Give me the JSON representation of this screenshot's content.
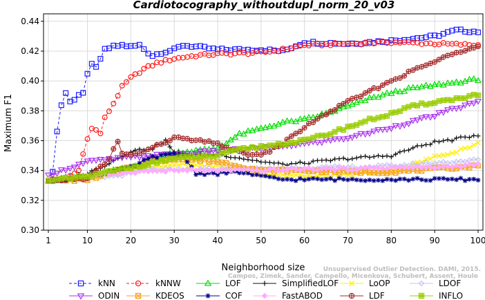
{
  "chart_data": {
    "type": "line",
    "title": "Cardiotocography_withoutdupl_norm_20_v03",
    "xlabel": "Neighborhood size",
    "ylabel": "Maximum F1",
    "xlim": [
      1,
      100
    ],
    "ylim": [
      0.3,
      0.445
    ],
    "xticks": [
      1,
      10,
      20,
      30,
      40,
      50,
      60,
      70,
      80,
      90,
      100
    ],
    "yticks": [
      0.3,
      0.32,
      0.34,
      0.36,
      0.38,
      0.4,
      0.42,
      0.44
    ],
    "xtick_labels": [
      "1",
      "10",
      "20",
      "30",
      "40",
      "50",
      "60",
      "70",
      "80",
      "90",
      "100"
    ],
    "ytick_labels": [
      "0.30",
      "0.32",
      "0.34",
      "0.36",
      "0.38",
      "0.40",
      "0.42",
      "0.44"
    ],
    "grid": true,
    "legend_position": "bottom",
    "watermark": "Campos, Zimek, Sander, Campello, Micenkova, Schubert, Assent, Houle",
    "watermark_line1": "Unsupervised Outlier Detection. DAMI, 2015.",
    "series": [
      {
        "name": "kNN",
        "color": "#1a1aff",
        "marker": "square",
        "dashed": true,
        "knots": [
          [
            1,
            0.333
          ],
          [
            2,
            0.34
          ],
          [
            3,
            0.366
          ],
          [
            4,
            0.384
          ],
          [
            5,
            0.392
          ],
          [
            6,
            0.386
          ],
          [
            7,
            0.388
          ],
          [
            8,
            0.391
          ],
          [
            9,
            0.392
          ],
          [
            10,
            0.404
          ],
          [
            11,
            0.411
          ],
          [
            12,
            0.41
          ],
          [
            13,
            0.414
          ],
          [
            14,
            0.421
          ],
          [
            15,
            0.422
          ],
          [
            16,
            0.423
          ],
          [
            18,
            0.424
          ],
          [
            20,
            0.423
          ],
          [
            22,
            0.424
          ],
          [
            24,
            0.419
          ],
          [
            25,
            0.417
          ],
          [
            27,
            0.419
          ],
          [
            30,
            0.421
          ],
          [
            32,
            0.424
          ],
          [
            35,
            0.423
          ],
          [
            40,
            0.421
          ],
          [
            50,
            0.421
          ],
          [
            55,
            0.42
          ],
          [
            60,
            0.426
          ],
          [
            70,
            0.425
          ],
          [
            80,
            0.427
          ],
          [
            90,
            0.43
          ],
          [
            95,
            0.434
          ],
          [
            100,
            0.433
          ]
        ]
      },
      {
        "name": "kNNW",
        "color": "#ff1a1a",
        "marker": "circle",
        "dashed": true,
        "knots": [
          [
            1,
            0.333
          ],
          [
            5,
            0.334
          ],
          [
            8,
            0.34
          ],
          [
            10,
            0.362
          ],
          [
            11,
            0.368
          ],
          [
            12,
            0.367
          ],
          [
            13,
            0.365
          ],
          [
            14,
            0.375
          ],
          [
            15,
            0.38
          ],
          [
            16,
            0.385
          ],
          [
            18,
            0.396
          ],
          [
            20,
            0.402
          ],
          [
            23,
            0.408
          ],
          [
            26,
            0.412
          ],
          [
            30,
            0.415
          ],
          [
            35,
            0.417
          ],
          [
            40,
            0.418
          ],
          [
            50,
            0.419
          ],
          [
            55,
            0.421
          ],
          [
            60,
            0.424
          ],
          [
            70,
            0.425
          ],
          [
            80,
            0.426
          ],
          [
            90,
            0.425
          ],
          [
            100,
            0.424
          ]
        ]
      },
      {
        "name": "LOF",
        "color": "#00dd00",
        "marker": "triangle",
        "knots": [
          [
            1,
            0.333
          ],
          [
            10,
            0.336
          ],
          [
            20,
            0.342
          ],
          [
            25,
            0.347
          ],
          [
            30,
            0.352
          ],
          [
            35,
            0.353
          ],
          [
            40,
            0.355
          ],
          [
            45,
            0.364
          ],
          [
            50,
            0.368
          ],
          [
            55,
            0.372
          ],
          [
            60,
            0.374
          ],
          [
            65,
            0.378
          ],
          [
            70,
            0.383
          ],
          [
            75,
            0.388
          ],
          [
            80,
            0.392
          ],
          [
            85,
            0.395
          ],
          [
            90,
            0.397
          ],
          [
            95,
            0.399
          ],
          [
            100,
            0.401
          ]
        ]
      },
      {
        "name": "SimplifiedLOF",
        "color": "#111111",
        "marker": "plus",
        "knots": [
          [
            1,
            0.333
          ],
          [
            10,
            0.338
          ],
          [
            15,
            0.345
          ],
          [
            20,
            0.353
          ],
          [
            25,
            0.355
          ],
          [
            28,
            0.36
          ],
          [
            30,
            0.352
          ],
          [
            35,
            0.35
          ],
          [
            40,
            0.351
          ],
          [
            50,
            0.346
          ],
          [
            55,
            0.344
          ],
          [
            60,
            0.345
          ],
          [
            70,
            0.348
          ],
          [
            75,
            0.349
          ],
          [
            80,
            0.35
          ],
          [
            85,
            0.355
          ],
          [
            90,
            0.359
          ],
          [
            95,
            0.361
          ],
          [
            100,
            0.364
          ]
        ]
      },
      {
        "name": "LoOP",
        "color": "#ffee00",
        "marker": "x",
        "knots": [
          [
            1,
            0.334
          ],
          [
            10,
            0.335
          ],
          [
            20,
            0.34
          ],
          [
            30,
            0.344
          ],
          [
            40,
            0.343
          ],
          [
            50,
            0.338
          ],
          [
            60,
            0.336
          ],
          [
            70,
            0.337
          ],
          [
            80,
            0.34
          ],
          [
            85,
            0.344
          ],
          [
            90,
            0.349
          ],
          [
            95,
            0.353
          ],
          [
            100,
            0.358
          ]
        ]
      },
      {
        "name": "LDOF",
        "color": "#c5c5ee",
        "marker": "diamond",
        "knots": [
          [
            1,
            0.333
          ],
          [
            15,
            0.336
          ],
          [
            20,
            0.338
          ],
          [
            25,
            0.341
          ],
          [
            30,
            0.34
          ],
          [
            40,
            0.341
          ],
          [
            50,
            0.341
          ],
          [
            60,
            0.342
          ],
          [
            70,
            0.342
          ],
          [
            80,
            0.343
          ],
          [
            90,
            0.345
          ],
          [
            100,
            0.347
          ]
        ]
      },
      {
        "name": "ODIN",
        "color": "#aa33ee",
        "marker": "triangle-down",
        "knots": [
          [
            1,
            0.337
          ],
          [
            10,
            0.346
          ],
          [
            20,
            0.349
          ],
          [
            30,
            0.351
          ],
          [
            40,
            0.353
          ],
          [
            50,
            0.355
          ],
          [
            60,
            0.358
          ],
          [
            70,
            0.362
          ],
          [
            80,
            0.369
          ],
          [
            90,
            0.377
          ],
          [
            95,
            0.382
          ],
          [
            100,
            0.386
          ]
        ]
      },
      {
        "name": "KDEOS",
        "color": "#f5a623",
        "marker": "boxtimes",
        "knots": [
          [
            1,
            0.333
          ],
          [
            10,
            0.334
          ],
          [
            20,
            0.342
          ],
          [
            25,
            0.346
          ],
          [
            30,
            0.348
          ],
          [
            40,
            0.346
          ],
          [
            50,
            0.34
          ],
          [
            60,
            0.34
          ],
          [
            70,
            0.339
          ],
          [
            80,
            0.339
          ],
          [
            90,
            0.341
          ],
          [
            100,
            0.343
          ]
        ]
      },
      {
        "name": "COF",
        "color": "#000088",
        "marker": "asterisk",
        "knots": [
          [
            1,
            0.333
          ],
          [
            10,
            0.336
          ],
          [
            20,
            0.342
          ],
          [
            25,
            0.349
          ],
          [
            30,
            0.351
          ],
          [
            32,
            0.35
          ],
          [
            35,
            0.338
          ],
          [
            40,
            0.338
          ],
          [
            45,
            0.339
          ],
          [
            50,
            0.336
          ],
          [
            55,
            0.334
          ],
          [
            60,
            0.334
          ],
          [
            70,
            0.334
          ],
          [
            80,
            0.334
          ],
          [
            90,
            0.334
          ],
          [
            100,
            0.334
          ]
        ]
      },
      {
        "name": "FastABOD",
        "color": "#ffaaff",
        "marker": "diamond-filled",
        "knots": [
          [
            1,
            0.334
          ],
          [
            10,
            0.336
          ],
          [
            20,
            0.339
          ],
          [
            30,
            0.34
          ],
          [
            40,
            0.34
          ],
          [
            50,
            0.34
          ],
          [
            60,
            0.341
          ],
          [
            70,
            0.341
          ],
          [
            80,
            0.342
          ],
          [
            90,
            0.342
          ],
          [
            100,
            0.344
          ]
        ]
      },
      {
        "name": "LDF",
        "color": "#a52a2a",
        "marker": "circle-plus",
        "knots": [
          [
            1,
            0.333
          ],
          [
            10,
            0.335
          ],
          [
            15,
            0.347
          ],
          [
            16,
            0.354
          ],
          [
            17,
            0.359
          ],
          [
            18,
            0.352
          ],
          [
            20,
            0.35
          ],
          [
            25,
            0.355
          ],
          [
            30,
            0.362
          ],
          [
            35,
            0.36
          ],
          [
            40,
            0.358
          ],
          [
            45,
            0.352
          ],
          [
            50,
            0.35
          ],
          [
            55,
            0.358
          ],
          [
            60,
            0.369
          ],
          [
            65,
            0.378
          ],
          [
            70,
            0.386
          ],
          [
            75,
            0.393
          ],
          [
            80,
            0.4
          ],
          [
            85,
            0.407
          ],
          [
            90,
            0.413
          ],
          [
            95,
            0.419
          ],
          [
            100,
            0.424
          ]
        ]
      },
      {
        "name": "INFLO",
        "color": "#99cc00",
        "marker": "boxhash",
        "knots": [
          [
            1,
            0.333
          ],
          [
            10,
            0.336
          ],
          [
            20,
            0.342
          ],
          [
            30,
            0.348
          ],
          [
            40,
            0.35
          ],
          [
            45,
            0.354
          ],
          [
            50,
            0.356
          ],
          [
            55,
            0.358
          ],
          [
            60,
            0.36
          ],
          [
            65,
            0.364
          ],
          [
            70,
            0.369
          ],
          [
            75,
            0.374
          ],
          [
            80,
            0.378
          ],
          [
            85,
            0.383
          ],
          [
            90,
            0.386
          ],
          [
            95,
            0.388
          ],
          [
            100,
            0.391
          ]
        ]
      }
    ]
  }
}
